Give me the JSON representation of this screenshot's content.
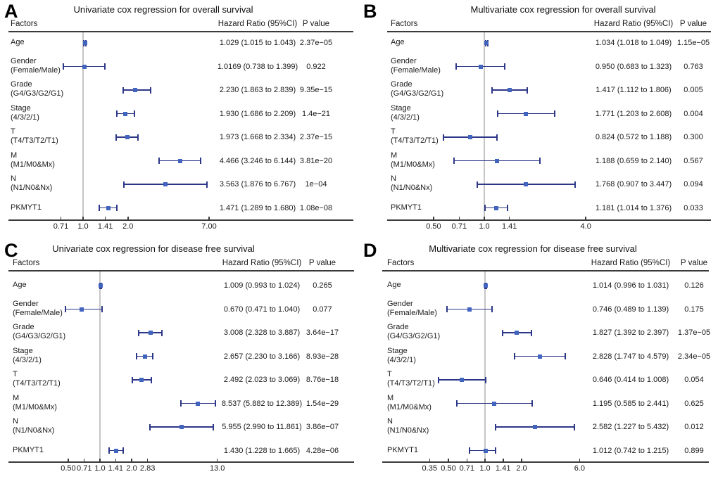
{
  "colors": {
    "errorbar": "#2d3787",
    "marker": "#4164be",
    "reference_line": "#c6c6c6",
    "axis": "#3a3a3a",
    "text": "#1a1a1a"
  },
  "chart_data": [
    {
      "panel_label": "A",
      "type": "forest",
      "title": "Univariate cox regression for overall survival",
      "x_scale": "log",
      "reference_line": 1.0,
      "columns": {
        "factors": "Factors",
        "hazard_ratio": "Hazard Ratio (95%CI)",
        "p_value": "P value"
      },
      "x_ticks": [
        "0.71",
        "1.0",
        "1.41",
        "2.0",
        "7.00"
      ],
      "x_tick_values": [
        0.71,
        1.0,
        1.41,
        2.0,
        7.0
      ],
      "rows": [
        {
          "factor": "Age",
          "sub": "",
          "hr": 1.029,
          "ci_low": 1.015,
          "ci_high": 1.043,
          "hr_text": "1.029 (1.015 to 1.043)",
          "p_text": "2.37e−05"
        },
        {
          "factor": "Gender",
          "sub": "(Female/Male)",
          "hr": 1.0169,
          "ci_low": 0.738,
          "ci_high": 1.399,
          "hr_text": "1.0169 (0.738 to 1.399)",
          "p_text": "0.922"
        },
        {
          "factor": "Grade",
          "sub": "(G4/G3/G2/G1)",
          "hr": 2.23,
          "ci_low": 1.863,
          "ci_high": 2.839,
          "hr_text": "2.230 (1.863 to 2.839)",
          "p_text": "9.35e−15"
        },
        {
          "factor": "Stage",
          "sub": "(4/3/2/1)",
          "hr": 1.93,
          "ci_low": 1.686,
          "ci_high": 2.209,
          "hr_text": "1.930 (1.686 to 2.209)",
          "p_text": "1.4e−21"
        },
        {
          "factor": "T",
          "sub": "(T4/T3/T2/T1)",
          "hr": 1.973,
          "ci_low": 1.668,
          "ci_high": 2.334,
          "hr_text": "1.973 (1.668 to 2.334)",
          "p_text": "2.37e−15"
        },
        {
          "factor": "M",
          "sub": "(M1/M0&Mx)",
          "hr": 4.466,
          "ci_low": 3.246,
          "ci_high": 6.144,
          "hr_text": "4.466 (3.246 to 6.144)",
          "p_text": "3.81e−20"
        },
        {
          "factor": "N",
          "sub": "(N1/N0&Nx)",
          "hr": 3.563,
          "ci_low": 1.876,
          "ci_high": 6.767,
          "hr_text": "3.563 (1.876 to 6.767)",
          "p_text": "1e−04"
        },
        {
          "factor": "PKMYT1",
          "sub": "",
          "hr": 1.471,
          "ci_low": 1.289,
          "ci_high": 1.68,
          "hr_text": "1.471 (1.289 to 1.680)",
          "p_text": "1.08e−08"
        }
      ]
    },
    {
      "panel_label": "B",
      "type": "forest",
      "title": "Multivariate cox regression for overall survival",
      "x_scale": "log",
      "reference_line": 1.0,
      "columns": {
        "factors": "Factors",
        "hazard_ratio": "Hazard Ratio (95%CI)",
        "p_value": "P value"
      },
      "x_ticks": [
        "0.50",
        "0.71",
        "1.0",
        "1.41",
        "4.0"
      ],
      "x_tick_values": [
        0.5,
        0.71,
        1.0,
        1.41,
        4.0
      ],
      "rows": [
        {
          "factor": "Age",
          "sub": "",
          "hr": 1.034,
          "ci_low": 1.018,
          "ci_high": 1.049,
          "hr_text": "1.034 (1.018 to 1.049)",
          "p_text": "1.15e−05"
        },
        {
          "factor": "Gender",
          "sub": "(Female/Male)",
          "hr": 0.95,
          "ci_low": 0.683,
          "ci_high": 1.323,
          "hr_text": "0.950 (0.683 to 1.323)",
          "p_text": "0.763"
        },
        {
          "factor": "Grade",
          "sub": "(G4/G3/G2/G1)",
          "hr": 1.417,
          "ci_low": 1.112,
          "ci_high": 1.806,
          "hr_text": "1.417 (1.112 to 1.806)",
          "p_text": "0.005"
        },
        {
          "factor": "Stage",
          "sub": "(4/3/2/1)",
          "hr": 1.771,
          "ci_low": 1.203,
          "ci_high": 2.608,
          "hr_text": "1.771 (1.203 to 2.608)",
          "p_text": "0.004"
        },
        {
          "factor": "T",
          "sub": "(T4/T3/T2/T1)",
          "hr": 0.824,
          "ci_low": 0.572,
          "ci_high": 1.188,
          "hr_text": "0.824 (0.572 to 1.188)",
          "p_text": "0.300"
        },
        {
          "factor": "M",
          "sub": "(M1/M0&Mx)",
          "hr": 1.188,
          "ci_low": 0.659,
          "ci_high": 2.14,
          "hr_text": "1.188 (0.659 to 2.140)",
          "p_text": "0.567"
        },
        {
          "factor": "N",
          "sub": "(N1/N0&Nx)",
          "hr": 1.768,
          "ci_low": 0.907,
          "ci_high": 3.447,
          "hr_text": "1.768 (0.907 to 3.447)",
          "p_text": "0.094"
        },
        {
          "factor": "PKMYT1",
          "sub": "",
          "hr": 1.181,
          "ci_low": 1.014,
          "ci_high": 1.376,
          "hr_text": "1.181 (1.014 to 1.376)",
          "p_text": "0.033"
        }
      ]
    },
    {
      "panel_label": "C",
      "type": "forest",
      "title": "Univariate cox regression for disease free survival",
      "x_scale": "log",
      "reference_line": 1.0,
      "columns": {
        "factors": "Factors",
        "hazard_ratio": "Hazard Ratio (95%CI)",
        "p_value": "P value"
      },
      "x_ticks": [
        "0.50",
        "0.71",
        "1.0",
        "1.41",
        "2.0",
        "2.83",
        "13.0"
      ],
      "x_tick_values": [
        0.5,
        0.71,
        1.0,
        1.41,
        2.0,
        2.83,
        13.0
      ],
      "rows": [
        {
          "factor": "Age",
          "sub": "",
          "hr": 1.009,
          "ci_low": 0.993,
          "ci_high": 1.024,
          "hr_text": "1.009 (0.993 to 1.024)",
          "p_text": "0.265"
        },
        {
          "factor": "Gender",
          "sub": "(Female/Male)",
          "hr": 0.67,
          "ci_low": 0.471,
          "ci_high": 1.04,
          "hr_text": "0.670 (0.471 to 1.040)",
          "p_text": "0.077"
        },
        {
          "factor": "Grade",
          "sub": "(G4/G3/G2/G1)",
          "hr": 3.008,
          "ci_low": 2.328,
          "ci_high": 3.887,
          "hr_text": "3.008 (2.328 to 3.887)",
          "p_text": "3.64e−17"
        },
        {
          "factor": "Stage",
          "sub": "(4/3/2/1)",
          "hr": 2.657,
          "ci_low": 2.23,
          "ci_high": 3.166,
          "hr_text": "2.657 (2.230 to 3.166)",
          "p_text": "8.93e−28"
        },
        {
          "factor": "T",
          "sub": "(T4/T3/T2/T1)",
          "hr": 2.492,
          "ci_low": 2.023,
          "ci_high": 3.069,
          "hr_text": "2.492 (2.023 to 3.069)",
          "p_text": "8.76e−18"
        },
        {
          "factor": "M",
          "sub": "(M1/M0&Mx)",
          "hr": 8.537,
          "ci_low": 5.882,
          "ci_high": 12.389,
          "hr_text": "8.537 (5.882 to 12.389)",
          "p_text": "1.54e−29"
        },
        {
          "factor": "N",
          "sub": "(N1/N0&Nx)",
          "hr": 5.955,
          "ci_low": 2.99,
          "ci_high": 11.861,
          "hr_text": "5.955 (2.990 to 11.861)",
          "p_text": "3.86e−07"
        },
        {
          "factor": "PKMYT1",
          "sub": "",
          "hr": 1.43,
          "ci_low": 1.228,
          "ci_high": 1.665,
          "hr_text": "1.430 (1.228 to 1.665)",
          "p_text": "4.28e−06"
        }
      ]
    },
    {
      "panel_label": "D",
      "type": "forest",
      "title": "Multivariate cox regression for disease free survival",
      "x_scale": "log",
      "reference_line": 1.0,
      "columns": {
        "factors": "Factors",
        "hazard_ratio": "Hazard Ratio (95%CI)",
        "p_value": "P value"
      },
      "x_ticks": [
        "0.35",
        "0.50",
        "0.71",
        "1.0",
        "1.41",
        "2.0",
        "6.0"
      ],
      "x_tick_values": [
        0.35,
        0.5,
        0.71,
        1.0,
        1.41,
        2.0,
        6.0
      ],
      "rows": [
        {
          "factor": "Age",
          "sub": "",
          "hr": 1.014,
          "ci_low": 0.996,
          "ci_high": 1.031,
          "hr_text": "1.014 (0.996 to 1.031)",
          "p_text": "0.126"
        },
        {
          "factor": "Gender",
          "sub": "(Female/Male)",
          "hr": 0.746,
          "ci_low": 0.489,
          "ci_high": 1.139,
          "hr_text": "0.746 (0.489 to 1.139)",
          "p_text": "0.175"
        },
        {
          "factor": "Grade",
          "sub": "(G4/G3/G2/G1)",
          "hr": 1.827,
          "ci_low": 1.392,
          "ci_high": 2.397,
          "hr_text": "1.827 (1.392 to 2.397)",
          "p_text": "1.37e−05"
        },
        {
          "factor": "Stage",
          "sub": "(4/3/2/1)",
          "hr": 2.828,
          "ci_low": 1.747,
          "ci_high": 4.579,
          "hr_text": "2.828 (1.747 to 4.579)",
          "p_text": "2.34e−05"
        },
        {
          "factor": "T",
          "sub": "(T4/T3/T2/T1)",
          "hr": 0.646,
          "ci_low": 0.414,
          "ci_high": 1.008,
          "hr_text": "0.646 (0.414 to 1.008)",
          "p_text": "0.054"
        },
        {
          "factor": "M",
          "sub": "(M1/M0&Mx)",
          "hr": 1.195,
          "ci_low": 0.585,
          "ci_high": 2.441,
          "hr_text": "1.195 (0.585 to 2.441)",
          "p_text": "0.625"
        },
        {
          "factor": "N",
          "sub": "(N1/N0&Nx)",
          "hr": 2.582,
          "ci_low": 1.227,
          "ci_high": 5.432,
          "hr_text": "2.582 (1.227 to 5.432)",
          "p_text": "0.012"
        },
        {
          "factor": "PKMYT1",
          "sub": "",
          "hr": 1.012,
          "ci_low": 0.742,
          "ci_high": 1.215,
          "hr_text": "1.012 (0.742 to 1.215)",
          "p_text": "0.899"
        }
      ]
    }
  ]
}
